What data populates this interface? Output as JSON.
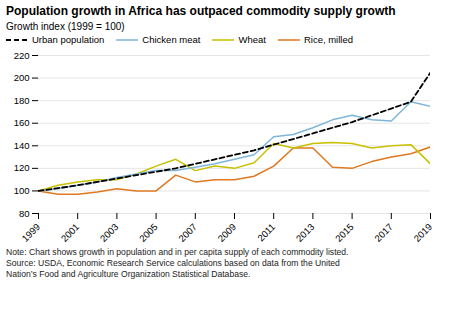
{
  "chart_data": {
    "type": "line",
    "title": "Population growth in Africa has outpaced commodity supply growth",
    "ylabel": "Growth index (1999 = 100)",
    "note": "Note: Chart shows growth in population and in per capita supply of each commodity listed.\nSource: USDA, Economic Research Service calculations based on data from the United\nNation’s Food and Agriculture Organization Statistical Database.",
    "x": [
      1999,
      2000,
      2001,
      2002,
      2003,
      2004,
      2005,
      2006,
      2007,
      2008,
      2009,
      2010,
      2011,
      2012,
      2013,
      2014,
      2015,
      2016,
      2017,
      2018,
      2019
    ],
    "series": [
      {
        "name": "Urban population",
        "color": "#000000",
        "line_style": "dashed",
        "values": [
          100,
          102.5,
          105,
          108,
          111,
          114,
          117,
          120,
          124,
          128,
          132,
          136,
          141,
          146,
          151,
          156,
          161,
          167,
          173,
          179,
          205
        ]
      },
      {
        "name": "Chicken meat",
        "color": "#7eb6d9",
        "line_style": "solid",
        "values": [
          100,
          102,
          105,
          108,
          112,
          115,
          118,
          118,
          121,
          124,
          128,
          132,
          148,
          150,
          156,
          163,
          167,
          163,
          162,
          179,
          175
        ]
      },
      {
        "name": "Wheat",
        "color": "#c8c000",
        "line_style": "solid",
        "values": [
          100,
          105,
          108,
          110,
          110,
          115,
          122,
          128,
          118,
          122,
          120,
          125,
          142,
          138,
          142,
          143,
          142,
          138,
          140,
          141,
          124
        ]
      },
      {
        "name": "Rice, milled",
        "color": "#e07820",
        "line_style": "solid",
        "values": [
          100,
          97,
          97,
          99,
          102,
          100,
          100,
          114,
          108,
          110,
          110,
          113,
          122,
          138,
          138,
          121,
          120,
          126,
          130,
          133,
          139
        ]
      }
    ],
    "xlim": [
      1999,
      2019
    ],
    "xticks": [
      1999,
      2001,
      2003,
      2005,
      2007,
      2009,
      2011,
      2013,
      2015,
      2017,
      2019
    ],
    "ylim": [
      80,
      220
    ],
    "yticks": [
      80,
      100,
      120,
      140,
      160,
      180,
      200,
      220
    ],
    "grid": "y",
    "legend": "upper left"
  }
}
